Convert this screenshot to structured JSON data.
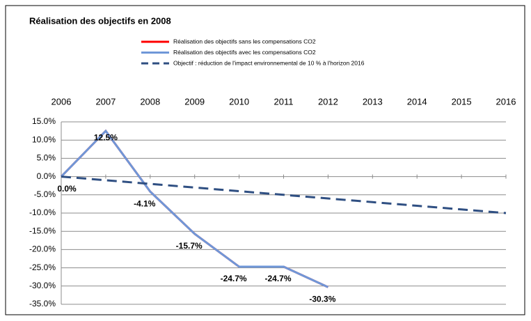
{
  "chart_data": {
    "type": "line",
    "title": "Réalisation des objectifs en 2008",
    "x": [
      2006,
      2007,
      2008,
      2009,
      2010,
      2011,
      2012,
      2013,
      2014,
      2015,
      2016
    ],
    "xlim": [
      2006,
      2016
    ],
    "xticks": [
      2006,
      2007,
      2008,
      2009,
      2010,
      2011,
      2012,
      2013,
      2014,
      2015,
      2016
    ],
    "ylim": [
      -35,
      15
    ],
    "yticks": [
      {
        "value": 15,
        "label": "15.0%"
      },
      {
        "value": 10,
        "label": "10.0%"
      },
      {
        "value": 5,
        "label": "5.0%"
      },
      {
        "value": 0,
        "label": "0.0%"
      },
      {
        "value": -5,
        "label": "-5.0%"
      },
      {
        "value": -10,
        "label": "-10.0%"
      },
      {
        "value": -15,
        "label": "-15.0%"
      },
      {
        "value": -20,
        "label": "-20.0%"
      },
      {
        "value": -25,
        "label": "-25.0%"
      },
      {
        "value": -30,
        "label": "-30.0%"
      },
      {
        "value": -35,
        "label": "-35.0%"
      }
    ],
    "grid": true,
    "series": [
      {
        "name": "Réalisation des objectifs sans les compensations CO2",
        "color": "#ff0000",
        "dash": false,
        "values": [
          0,
          12.5,
          -4.1,
          -15.7,
          -24.7,
          -24.7,
          -30.3,
          null,
          null,
          null,
          null
        ]
      },
      {
        "name": "Réalisation des objectifs avec les compensations CO2",
        "color": "#6f97d8",
        "dash": false,
        "values": [
          0,
          12.5,
          -4.1,
          -15.7,
          -24.7,
          -24.7,
          -30.3,
          null,
          null,
          null,
          null
        ],
        "value_labels": [
          "0.0%",
          "12.5%",
          "-4.1%",
          "-15.7%",
          "-24.7%",
          "-24.7%",
          "-30.3%",
          null,
          null,
          null,
          null
        ]
      },
      {
        "name": "Objectif : réduction de l'impact environnemental de 10 % à l'horizon 2016",
        "color": "#2f4f82",
        "dash": true,
        "values": [
          0,
          -1,
          -2,
          -3,
          -4,
          -5,
          -6,
          -7,
          -8,
          -9,
          -10
        ]
      }
    ]
  }
}
